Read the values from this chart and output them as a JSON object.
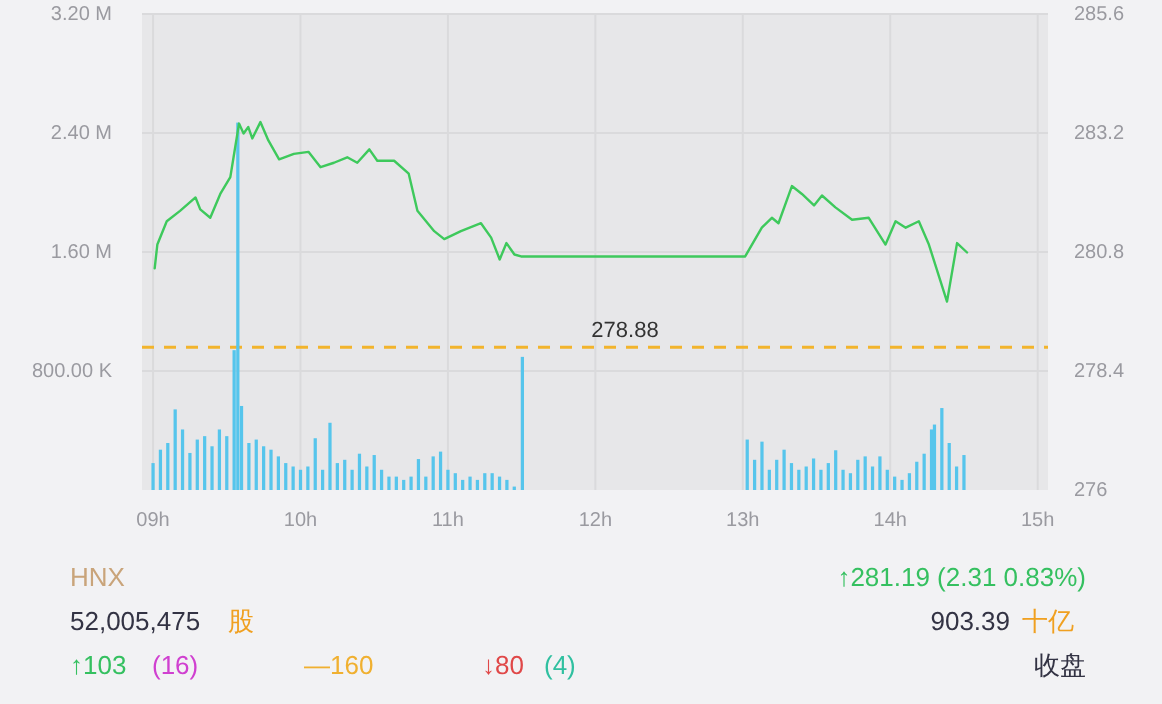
{
  "chart_data": {
    "type": "bar",
    "xlim": [
      8.925,
      15.07
    ],
    "xticks": [
      {
        "value": 9,
        "label": "09h"
      },
      {
        "value": 10,
        "label": "10h"
      },
      {
        "value": 11,
        "label": "11h"
      },
      {
        "value": 12,
        "label": "12h"
      },
      {
        "value": 13,
        "label": "13h"
      },
      {
        "value": 14,
        "label": "14h"
      },
      {
        "value": 15,
        "label": "15h"
      }
    ],
    "ylim": [
      0,
      3200000
    ],
    "yticks": [
      {
        "value": 800000,
        "label": "800.00 K"
      },
      {
        "value": 1600000,
        "label": "1.60 M"
      },
      {
        "value": 2400000,
        "label": "2.40 M"
      },
      {
        "value": 3200000,
        "label": "3.20 M"
      }
    ],
    "y2lim": [
      276,
      285.6
    ],
    "y2ticks": [
      {
        "value": 276,
        "label": "276"
      },
      278.4,
      280.8,
      283.2,
      285.6
    ],
    "grid": true,
    "series": [
      {
        "color": "#56c5ec",
        "x": [
          9.0,
          9.05,
          9.1,
          9.15,
          9.2,
          9.25,
          9.3,
          9.35,
          9.4,
          9.45,
          9.5,
          9.55,
          9.575,
          9.6,
          9.65,
          9.7,
          9.75,
          9.8,
          9.85,
          9.9,
          9.95,
          10.0,
          10.05,
          10.1,
          10.15,
          10.2,
          10.25,
          10.3,
          10.35,
          10.4,
          10.45,
          10.5,
          10.55,
          10.6,
          10.65,
          10.7,
          10.75,
          10.8,
          10.85,
          10.9,
          10.95,
          11.0,
          11.05,
          11.1,
          11.15,
          11.2,
          11.25,
          11.3,
          11.35,
          11.4,
          11.45,
          11.505,
          13.03,
          13.08,
          13.13,
          13.18,
          13.23,
          13.28,
          13.33,
          13.38,
          13.43,
          13.48,
          13.53,
          13.58,
          13.63,
          13.68,
          13.73,
          13.78,
          13.83,
          13.88,
          13.93,
          13.98,
          14.03,
          14.08,
          14.13,
          14.18,
          14.23,
          14.28,
          14.3,
          14.35,
          14.4,
          14.45,
          14.5
        ],
        "values": [
          181000,
          271000,
          316000,
          542000,
          407000,
          249000,
          339000,
          362000,
          294000,
          407000,
          362000,
          940000,
          2470000,
          565000,
          316000,
          339000,
          294000,
          271000,
          226000,
          181000,
          158000,
          136000,
          158000,
          348000,
          136000,
          452000,
          181000,
          203000,
          136000,
          244000,
          158000,
          235000,
          136000,
          90000,
          90000,
          68000,
          90000,
          208000,
          90000,
          226000,
          258000,
          136000,
          113000,
          68000,
          90000,
          68000,
          113000,
          113000,
          90000,
          68000,
          23000,
          895000,
          339000,
          203000,
          325000,
          136000,
          203000,
          271000,
          181000,
          136000,
          158000,
          212000,
          136000,
          181000,
          267000,
          136000,
          113000,
          203000,
          226000,
          158000,
          226000,
          136000,
          90000,
          68000,
          113000,
          190000,
          244000,
          407000,
          440000,
          551000,
          316000,
          158000,
          235000
        ]
      },
      {
        "type": "line",
        "axis": "y2",
        "color": "#3ec95c",
        "x": [
          9.011,
          9.029,
          9.093,
          9.183,
          9.288,
          9.32,
          9.388,
          9.456,
          9.524,
          9.546,
          9.583,
          9.614,
          9.646,
          9.673,
          9.728,
          9.782,
          9.855,
          9.955,
          10.054,
          10.136,
          10.227,
          10.317,
          10.385,
          10.467,
          10.521,
          10.635,
          10.734,
          10.793,
          10.907,
          10.975,
          11.088,
          11.224,
          11.293,
          11.351,
          11.397,
          11.451,
          11.496,
          13.016,
          13.129,
          13.197,
          13.242,
          13.333,
          13.401,
          13.483,
          13.537,
          13.628,
          13.741,
          13.854,
          13.968,
          14.036,
          14.105,
          14.194,
          14.262,
          14.385,
          14.453,
          14.521
        ],
        "values": [
          280.47,
          280.95,
          281.42,
          281.63,
          281.9,
          281.66,
          281.49,
          281.97,
          282.31,
          282.71,
          283.39,
          283.19,
          283.32,
          283.09,
          283.42,
          283.05,
          282.67,
          282.78,
          282.82,
          282.51,
          282.6,
          282.71,
          282.6,
          282.87,
          282.64,
          282.64,
          282.38,
          281.63,
          281.22,
          281.06,
          281.22,
          281.38,
          281.09,
          280.65,
          280.98,
          280.75,
          280.71,
          280.71,
          281.29,
          281.49,
          281.38,
          282.13,
          281.97,
          281.74,
          281.94,
          281.7,
          281.45,
          281.49,
          280.95,
          281.42,
          281.29,
          281.42,
          280.95,
          279.8,
          280.98,
          280.79
        ]
      }
    ],
    "ref_lines": [
      {
        "axis": "y2",
        "value": 278.88,
        "label": "278.88",
        "color": "#f2b42c",
        "line_style": "dashed"
      }
    ],
    "annotations": [
      "HNX",
      "52,005,475",
      "股",
      "↑281.19 (2.31 0.83%)",
      "903.39",
      "十亿",
      "↑103",
      "(16)",
      "—160",
      "↓80",
      "(4)",
      "收盘"
    ]
  }
}
